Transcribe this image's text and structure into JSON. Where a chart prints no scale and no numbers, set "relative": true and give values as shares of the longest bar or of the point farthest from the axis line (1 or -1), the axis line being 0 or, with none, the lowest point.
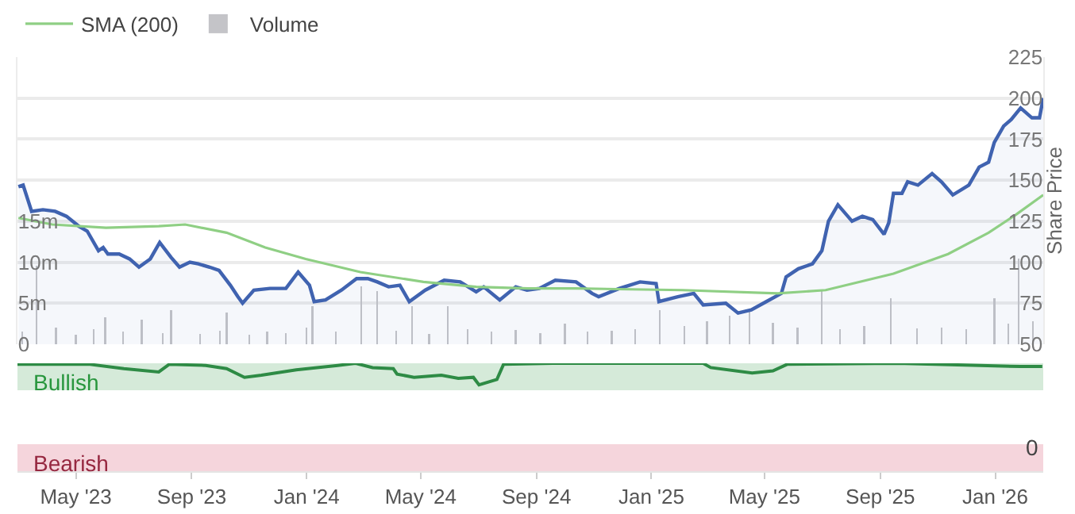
{
  "chart_data": [
    {
      "type": "line",
      "legend": "top left",
      "grid": "y",
      "tick_labels": "y",
      "ylabel": "Share Price",
      "xlim": [
        "2023-02-28",
        "2026-02-21"
      ],
      "ylim": [
        50,
        225
      ],
      "yticks": [
        50,
        75,
        100,
        125,
        150,
        175,
        200,
        225
      ],
      "y2lim": [
        0,
        35000000
      ],
      "y2ticks": [
        0,
        {
          "value": 5000000,
          "label": "5m"
        },
        {
          "value": 10000000,
          "label": "10m"
        },
        {
          "value": 15000000,
          "label": "15m"
        }
      ],
      "series": [
        {
          "type": "area",
          "color": "#4063b0",
          "x": [
            "2023-03-01",
            "2023-03-06",
            "2023-03-15",
            "2023-03-27",
            "2023-04-09",
            "2023-04-21",
            "2023-05-04",
            "2023-05-13",
            "2023-05-25",
            "2023-05-30",
            "2023-06-04",
            "2023-06-16",
            "2023-06-27",
            "2023-07-07",
            "2023-07-19",
            "2023-07-29",
            "2023-08-10",
            "2023-08-19",
            "2023-08-30",
            "2023-09-08",
            "2023-09-20",
            "2023-09-30",
            "2023-10-12",
            "2023-10-20",
            "2023-10-25",
            "2023-11-06",
            "2023-11-23",
            "2023-12-10",
            "2023-12-23",
            "2024-01-04",
            "2024-01-09",
            "2024-01-21",
            "2024-02-07",
            "2024-02-23",
            "2024-03-06",
            "2024-03-16",
            "2024-03-28",
            "2024-04-09",
            "2024-04-19",
            "2024-05-06",
            "2024-05-26",
            "2024-06-12",
            "2024-06-29",
            "2024-07-07",
            "2024-07-24",
            "2024-08-10",
            "2024-08-22",
            "2024-09-04",
            "2024-09-21",
            "2024-10-13",
            "2024-10-30",
            "2024-11-06",
            "2024-11-28",
            "2024-12-20",
            "2025-01-06",
            "2025-01-09",
            "2025-01-29",
            "2025-02-15",
            "2025-02-25",
            "2025-03-21",
            "2025-04-03",
            "2025-04-17",
            "2025-05-03",
            "2025-05-19",
            "2025-05-24",
            "2025-06-06",
            "2025-06-21",
            "2025-07-01",
            "2025-07-08",
            "2025-07-18",
            "2025-08-02",
            "2025-08-13",
            "2025-08-24",
            "2025-09-05",
            "2025-09-10",
            "2025-09-15",
            "2025-09-24",
            "2025-09-30",
            "2025-10-11",
            "2025-10-26",
            "2025-11-05",
            "2025-11-17",
            "2025-12-04",
            "2025-12-15",
            "2025-12-25",
            "2025-12-31",
            "2026-01-10",
            "2026-01-18",
            "2026-01-28",
            "2026-02-09",
            "2026-02-17",
            "2026-02-21"
          ],
          "values": [
            146,
            147,
            131,
            132,
            131,
            128,
            122,
            119,
            107,
            109,
            105,
            105,
            102,
            97,
            102,
            112,
            103,
            97,
            100,
            99,
            97,
            95,
            86,
            79,
            75,
            83,
            84,
            84,
            94,
            86,
            76,
            77,
            83,
            90,
            90,
            88,
            85,
            86,
            76,
            83,
            89,
            88,
            82,
            85,
            77,
            85,
            83,
            84,
            89,
            88,
            81,
            79,
            84,
            88,
            87,
            76,
            79,
            81,
            74,
            75,
            69,
            71,
            76,
            81,
            91,
            96,
            99,
            107,
            125,
            135,
            125,
            128,
            126,
            117,
            124,
            142,
            142,
            149,
            147,
            154,
            149,
            141,
            147,
            158,
            161,
            173,
            183,
            187,
            194,
            188,
            188,
            200
          ]
        },
        {
          "name": "SMA (200)",
          "type": "line",
          "color": "#8fcf84",
          "x": [
            "2023-03-01",
            "2023-04-06",
            "2023-06-02",
            "2023-07-28",
            "2023-08-25",
            "2023-10-08",
            "2023-11-18",
            "2023-12-31",
            "2024-02-27",
            "2024-05-04",
            "2024-06-29",
            "2024-08-23",
            "2024-10-13",
            "2025-02-03",
            "2025-05-15",
            "2025-07-05",
            "2025-09-15",
            "2025-11-12",
            "2025-12-25",
            "2026-01-23",
            "2026-02-21"
          ],
          "values": [
            127,
            123,
            121,
            122,
            123,
            118,
            109,
            102,
            94,
            88,
            85,
            84,
            84,
            83,
            81,
            83,
            93,
            105,
            118,
            129,
            141
          ]
        },
        {
          "name": "Volume",
          "type": "bar",
          "axis": "y2",
          "color": "#c4c4c8",
          "x": [
            "2023-03-05",
            "2023-03-20",
            "2023-04-10",
            "2023-05-01",
            "2023-05-20",
            "2023-06-01",
            "2023-06-20",
            "2023-07-10",
            "2023-08-01",
            "2023-08-10",
            "2023-09-10",
            "2023-10-01",
            "2023-10-08",
            "2023-11-01",
            "2023-11-20",
            "2023-12-10",
            "2024-01-01",
            "2024-01-07",
            "2024-02-01",
            "2024-02-28",
            "2024-03-16",
            "2024-04-05",
            "2024-04-22",
            "2024-05-10",
            "2024-05-30",
            "2024-06-20",
            "2024-07-15",
            "2024-08-10",
            "2024-09-05",
            "2024-10-01",
            "2024-10-25",
            "2024-11-20",
            "2024-12-15",
            "2025-01-10",
            "2025-02-05",
            "2025-03-01",
            "2025-03-25",
            "2025-04-15",
            "2025-05-10",
            "2025-06-05",
            "2025-07-01",
            "2025-07-20",
            "2025-08-15",
            "2025-09-12",
            "2025-10-10",
            "2025-11-05",
            "2025-12-01",
            "2025-12-31",
            "2026-01-15",
            "2026-01-26",
            "2026-02-10"
          ],
          "values": [
            1500000,
            9600000,
            2000000,
            1200000,
            1800000,
            3300000,
            1500000,
            3000000,
            1400000,
            4200000,
            1300000,
            1600000,
            3900000,
            1200000,
            1500000,
            1400000,
            2000000,
            4600000,
            1500000,
            7100000,
            6500000,
            1600000,
            4600000,
            1300000,
            4600000,
            1800000,
            1500000,
            1700000,
            1400000,
            2500000,
            1500000,
            1600000,
            1800000,
            4200000,
            2200000,
            2800000,
            3500000,
            4000000,
            2600000,
            2000000,
            6500000,
            1800000,
            2200000,
            5600000,
            1900000,
            2000000,
            1800000,
            5600000,
            2500000,
            10400000,
            2800000
          ]
        }
      ]
    },
    {
      "type": "line",
      "grid": false,
      "relative": true,
      "annotations": [
        "0"
      ],
      "xlim": [
        "2023-02-28",
        "2026-02-21"
      ],
      "xticks": [
        {
          "value": "2023-05-01",
          "label": "May '23"
        },
        {
          "value": "2023-09-01",
          "label": "Sep '23"
        },
        {
          "value": "2024-01-01",
          "label": "Jan '24"
        },
        {
          "value": "2024-05-01",
          "label": "May '24"
        },
        {
          "value": "2024-09-01",
          "label": "Sep '24"
        },
        {
          "value": "2025-01-01",
          "label": "Jan '25"
        },
        {
          "value": "2025-05-01",
          "label": "May '25"
        },
        {
          "value": "2025-09-01",
          "label": "Sep '25"
        },
        {
          "value": "2026-01-01",
          "label": "Jan '26"
        }
      ],
      "bands": [
        {
          "axis": "y",
          "from": 0.75,
          "to": 1,
          "label": "Bullish",
          "color": "#d5ead9"
        },
        {
          "axis": "y",
          "from": 0,
          "to": 0.25,
          "label": "Bearish",
          "color": "#f5d5dc"
        }
      ],
      "series": [
        {
          "color": "#2e8b45",
          "x": [
            "2023-02-28",
            "2023-05-16",
            "2023-06-21",
            "2023-07-28",
            "2023-08-08",
            "2023-09-16",
            "2023-10-08",
            "2023-10-27",
            "2023-11-14",
            "2023-12-21",
            "2024-02-03",
            "2024-02-22",
            "2024-03-11",
            "2024-04-02",
            "2024-04-06",
            "2024-04-24",
            "2024-05-23",
            "2024-06-10",
            "2024-06-26",
            "2024-07-02",
            "2024-07-21",
            "2024-07-28",
            "2024-09-18",
            "2025-02-25",
            "2025-03-05",
            "2025-04-18",
            "2025-05-10",
            "2025-05-25",
            "2025-09-19",
            "2026-01-28",
            "2026-02-20"
          ],
          "values": [
            0.99,
            0.99,
            0.95,
            0.92,
            0.99,
            0.98,
            0.95,
            0.87,
            0.89,
            0.94,
            0.98,
            1,
            0.96,
            0.95,
            0.9,
            0.87,
            0.89,
            0.86,
            0.87,
            0.8,
            0.85,
            0.99,
            1,
            1,
            0.96,
            0.91,
            0.93,
            0.99,
            1,
            0.97,
            0.97
          ]
        }
      ]
    }
  ]
}
